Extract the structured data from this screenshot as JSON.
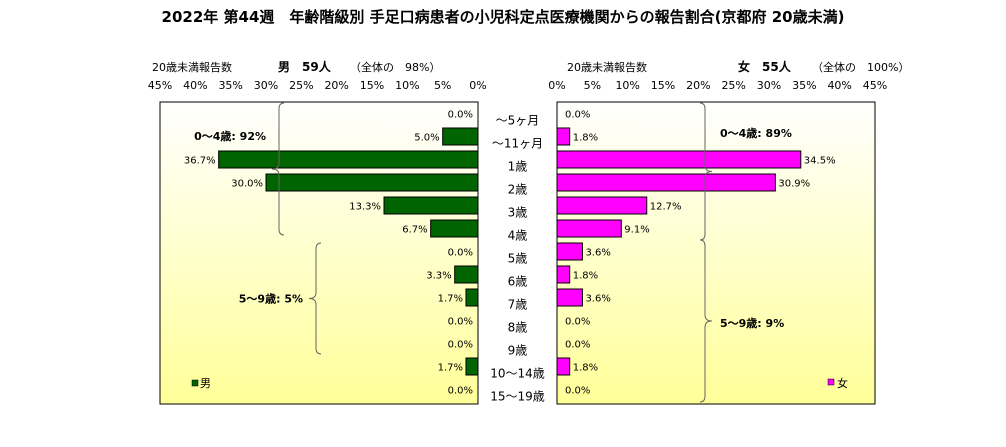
{
  "chart_data": {
    "type": "bar",
    "title": "2022年 第44週　年齢階級別 手足口病患者の小児科定点医療機関からの報告割合(京都府 20歳未満)",
    "categories": [
      "～5ヶ月",
      "～11ヶ月",
      "1歳",
      "2歳",
      "3歳",
      "4歳",
      "5歳",
      "6歳",
      "7歳",
      "8歳",
      "9歳",
      "10～14歳",
      "15～19歳"
    ],
    "xlim": [
      0,
      45
    ],
    "x_ticks": [
      "0%",
      "5%",
      "10%",
      "15%",
      "20%",
      "25%",
      "30%",
      "35%",
      "40%",
      "45%"
    ],
    "series": [
      {
        "name": "男",
        "header_label": "20歳未満報告数",
        "header_count": "男　59人",
        "header_share": "（全体の　98%）",
        "color": "#006400",
        "values": [
          0.0,
          5.0,
          36.7,
          30.0,
          13.3,
          6.7,
          0.0,
          3.3,
          1.7,
          0.0,
          0.0,
          1.7,
          0.0
        ],
        "value_labels": [
          "0.0%",
          "5.0%",
          "36.7%",
          "30.0%",
          "13.3%",
          "6.7%",
          "0.0%",
          "3.3%",
          "1.7%",
          "0.0%",
          "0.0%",
          "1.7%",
          "0.0%"
        ],
        "groups": [
          {
            "label": "0～4歳: 92%",
            "from": 0,
            "to": 5
          },
          {
            "label": "5～9歳: 5%",
            "from": 6,
            "to": 10
          }
        ]
      },
      {
        "name": "女",
        "header_label": "20歳未満報告数",
        "header_count": "女　55人",
        "header_share": "（全体の　100%）",
        "color": "#ff00ff",
        "values": [
          0.0,
          1.8,
          34.5,
          30.9,
          12.7,
          9.1,
          3.6,
          1.8,
          3.6,
          0.0,
          0.0,
          1.8,
          0.0
        ],
        "value_labels": [
          "0.0%",
          "1.8%",
          "34.5%",
          "30.9%",
          "12.7%",
          "9.1%",
          "3.6%",
          "1.8%",
          "3.6%",
          "0.0%",
          "0.0%",
          "1.8%",
          "0.0%"
        ],
        "groups": [
          {
            "label": "0～4歳: 89%",
            "from": 0,
            "to": 5
          },
          {
            "label": "5～9歳: 9%",
            "from": 6,
            "to": 10
          }
        ]
      }
    ],
    "legend": [
      "男",
      "女"
    ],
    "colors": {
      "male": "#006400",
      "female": "#ff00ff",
      "panel_top": "#ffffff",
      "panel_bottom": "#ffff99"
    }
  }
}
